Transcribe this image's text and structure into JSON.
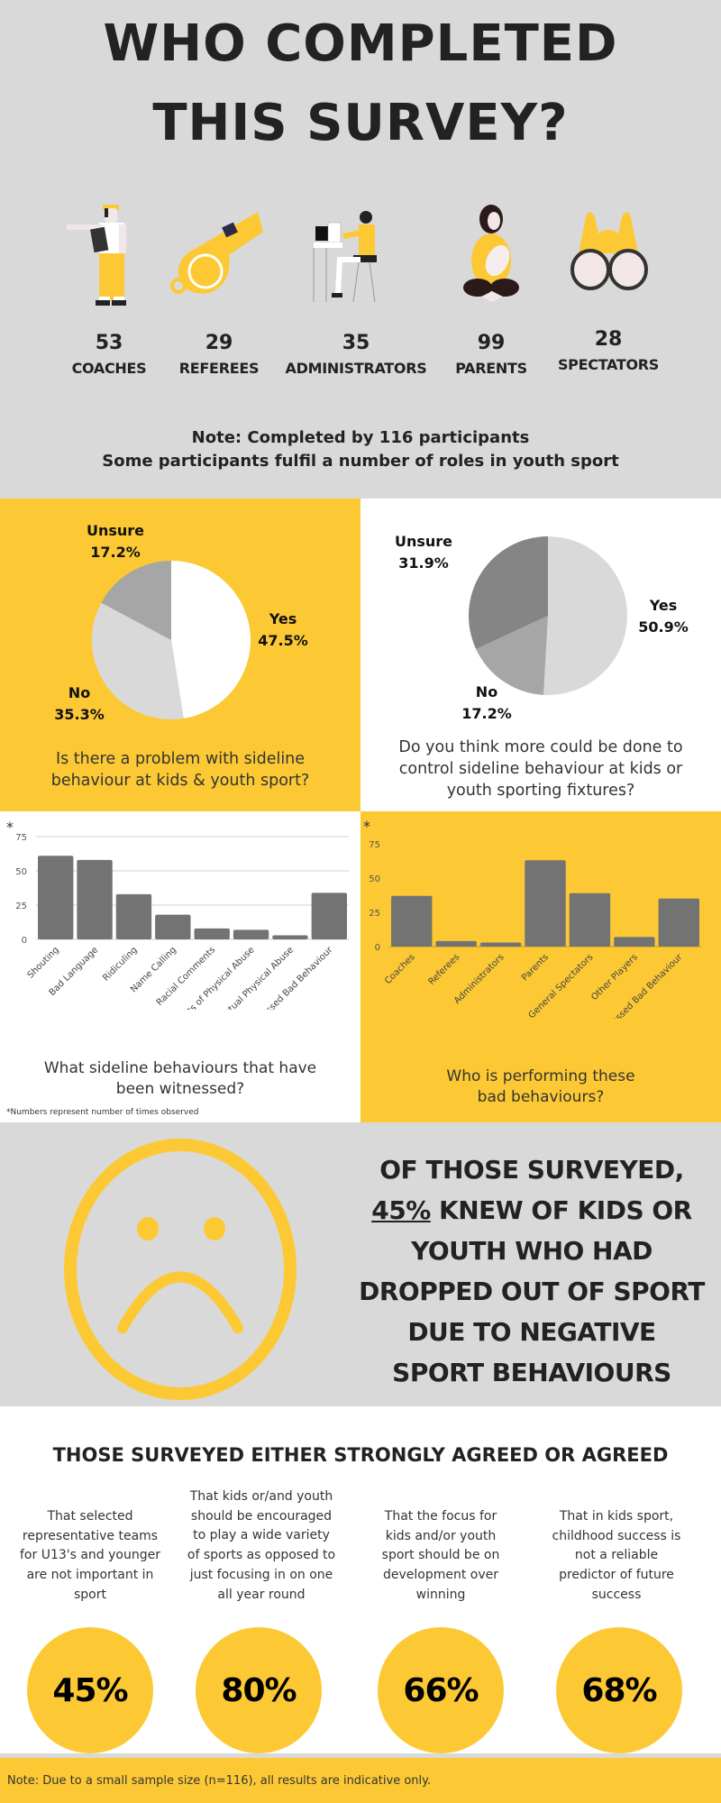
{
  "header": {
    "title_line1": "WHO COMPLETED",
    "title_line2": "THIS SURVEY?"
  },
  "roles": [
    {
      "icon": "coach-illustration-icon",
      "count": "53",
      "label": "COACHES"
    },
    {
      "icon": "whistle-icon",
      "count": "29",
      "label": "REFEREES"
    },
    {
      "icon": "administrator-at-computer-icon",
      "count": "35",
      "label": "ADMINISTRATORS"
    },
    {
      "icon": "parent-with-baby-icon",
      "count": "99",
      "label": "PARENTS"
    },
    {
      "icon": "binoculars-icon",
      "count": "28",
      "label": "SPECTATORS"
    }
  ],
  "note_top": {
    "line1": "Note: Completed by 116 participants",
    "line2": "Some participants fulfil a number of roles in youth sport"
  },
  "colors": {
    "accent_yellow": "#fcc934",
    "light_grey": "#d9d9d9",
    "bar_grey": "#737373",
    "text_dark": "#222222"
  },
  "sad_stat": {
    "line1": "OF THOSE SURVEYED,",
    "pct": "45%",
    "line2_rest": " KNEW OF KIDS OR",
    "line3": "YOUTH WHO HAD",
    "line4": "DROPPED OUT OF SPORT",
    "line5": "DUE TO NEGATIVE",
    "line6": "SPORT BEHAVIOURS",
    "icon": "sad-face-icon"
  },
  "agree": {
    "title": "THOSE SURVEYED EITHER STRONGLY AGREED OR AGREED",
    "items": [
      {
        "lines": [
          "That selected",
          "representative teams",
          "for U13's and younger",
          "are not important in",
          "sport"
        ],
        "pct": "45%"
      },
      {
        "lines": [
          "That kids or/and youth",
          "should be encouraged",
          "to play a wide variety",
          "of sports as opposed to",
          "just focusing in on one",
          "all year round"
        ],
        "pct": "80%"
      },
      {
        "lines": [
          "That the focus for",
          "kids and/or youth",
          "sport should be on",
          "development over",
          "winning"
        ],
        "pct": "66%"
      },
      {
        "lines": [
          "That in kids sport,",
          "childhood success is",
          "not a reliable",
          "predictor of future",
          "success"
        ],
        "pct": "68%"
      }
    ]
  },
  "footer": {
    "note": "Note: Due to a small sample size (n=116), all results are indicative only."
  },
  "chart_data": [
    {
      "type": "pie",
      "title": "Is there a problem with sideline behaviour at kids & youth sport?",
      "title_lines": [
        "Is there a problem with sideline",
        "behaviour at kids & youth sport?"
      ],
      "slices": [
        {
          "label": "Yes",
          "value": 47.5,
          "display": "47.5%",
          "color": "#ffffff"
        },
        {
          "label": "No",
          "value": 35.3,
          "display": "35.3%",
          "color": "#d9d9d9"
        },
        {
          "label": "Unsure",
          "value": 17.2,
          "display": "17.2%",
          "color": "#a6a6a6"
        }
      ]
    },
    {
      "type": "pie",
      "title": "Do you think more could be done to control sideline behaviour at kids or youth sporting fixtures?",
      "title_lines": [
        "Do you think more could be done to",
        "control sideline behaviour at kids or",
        "youth sporting fixtures?"
      ],
      "slices": [
        {
          "label": "Yes",
          "value": 50.9,
          "display": "50.9%",
          "color": "#d9d9d9"
        },
        {
          "label": "No",
          "value": 17.2,
          "display": "17.2%",
          "color": "#a6a6a6"
        },
        {
          "label": "Unsure",
          "value": 31.9,
          "display": "31.9%",
          "color": "#858585"
        }
      ]
    },
    {
      "type": "bar",
      "title": "What sideline behaviours that have been witnessed?",
      "title_lines": [
        "What sideline behaviours that have",
        "been witnessed?"
      ],
      "asterisk": "*",
      "footnote": "*Numbers represent number of times observed",
      "categories": [
        "Shouting",
        "Bad Language",
        "Ridiculing",
        "Name Calling",
        "Racial Comments",
        "Threats of Physical Abuse",
        "Actual Physical Abuse",
        "Not Witnessed Bad Behaviour"
      ],
      "values": [
        61,
        58,
        33,
        18,
        8,
        7,
        3,
        34
      ],
      "yticks": [
        "0",
        "25",
        "50",
        "75"
      ],
      "ylim": [
        0,
        75
      ],
      "grid": true,
      "xlabel": "",
      "ylabel": ""
    },
    {
      "type": "bar",
      "title": "Who is performing these bad behaviours?",
      "title_lines": [
        "Who is performing these",
        "bad behaviours?"
      ],
      "asterisk": "*",
      "categories": [
        "Coaches",
        "Referees",
        "Administrators",
        "Parents",
        "General Spectators",
        "Other Players",
        "Not Witnessed Bad Behaviour"
      ],
      "values": [
        37,
        4,
        3,
        63,
        39,
        7,
        35
      ],
      "yticks": [
        "0",
        "25",
        "50",
        "75"
      ],
      "ylim": [
        0,
        75
      ],
      "grid": false,
      "xlabel": "",
      "ylabel": ""
    }
  ]
}
